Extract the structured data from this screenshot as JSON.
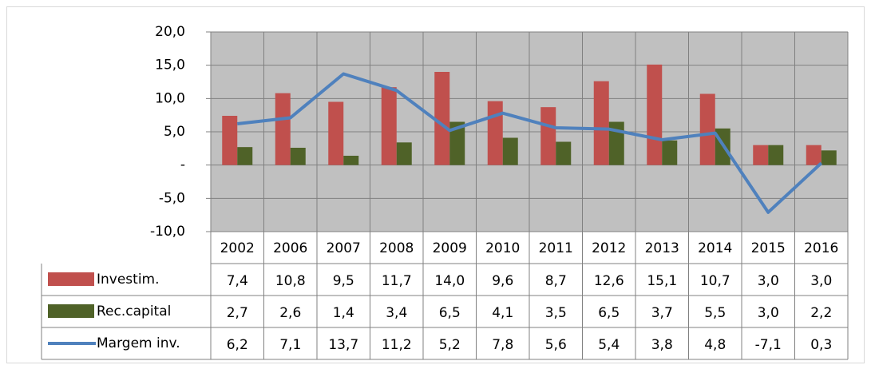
{
  "chart_data": {
    "type": "bar",
    "categories": [
      "2002",
      "2006",
      "2007",
      "2008",
      "2009",
      "2010",
      "2011",
      "2012",
      "2013",
      "2014",
      "2015",
      "2016"
    ],
    "series": [
      {
        "name": "Investim.",
        "type": "bar",
        "color": "#c0504d",
        "values": [
          7.4,
          10.8,
          9.5,
          11.7,
          14.0,
          9.6,
          8.7,
          12.6,
          15.1,
          10.7,
          3.0,
          3.0
        ],
        "value_labels": [
          "7,4",
          "10,8",
          "9,5",
          "11,7",
          "14,0",
          "9,6",
          "8,7",
          "12,6",
          "15,1",
          "10,7",
          "3,0",
          "3,0"
        ]
      },
      {
        "name": "Rec.capital",
        "type": "bar",
        "color": "#4f6228",
        "values": [
          2.7,
          2.6,
          1.4,
          3.4,
          6.5,
          4.1,
          3.5,
          6.5,
          3.7,
          5.5,
          3.0,
          2.2
        ],
        "value_labels": [
          "2,7",
          "2,6",
          "1,4",
          "3,4",
          "6,5",
          "4,1",
          "3,5",
          "6,5",
          "3,7",
          "5,5",
          "3,0",
          "2,2"
        ]
      },
      {
        "name": "Margem inv.",
        "type": "line",
        "color": "#4f81bd",
        "values": [
          6.2,
          7.1,
          13.7,
          11.2,
          5.2,
          7.8,
          5.6,
          5.4,
          3.8,
          4.8,
          -7.1,
          0.3
        ],
        "value_labels": [
          "6,2",
          "7,1",
          "13,7",
          "11,2",
          "5,2",
          "7,8",
          "5,6",
          "5,4",
          "3,8",
          "4,8",
          "-7,1",
          "0,3"
        ]
      }
    ],
    "ylim": [
      -10,
      20
    ],
    "yticks": [
      {
        "value": -10,
        "label": "-10,0"
      },
      {
        "value": -5,
        "label": "-5,0"
      },
      {
        "value": 0,
        "label": "-"
      },
      {
        "value": 5,
        "label": "5,0"
      },
      {
        "value": 10,
        "label": "10,0"
      },
      {
        "value": 15,
        "label": "15,0"
      },
      {
        "value": 20,
        "label": "20,0"
      }
    ],
    "grid": true,
    "plot_background": "#c0c0c0"
  }
}
